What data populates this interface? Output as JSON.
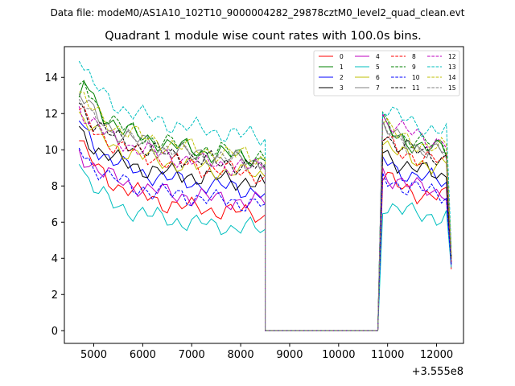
{
  "chart_data": {
    "type": "line",
    "suptitle": "Data file: modeM0/AS1A10_102T10_9000004282_29878cztM0_level2_quad_clean.evt",
    "title": "Quadrant 1 module wise count rates with 100.0s bins.",
    "xlabel": "",
    "ylabel": "",
    "x_offset_label": "+3.555e8",
    "xlim": [
      4400,
      12550
    ],
    "ylim": [
      -0.7,
      15.7
    ],
    "xticks": [
      5000,
      6000,
      7000,
      8000,
      9000,
      10000,
      11000,
      12000
    ],
    "yticks": [
      0,
      2,
      4,
      6,
      8,
      10,
      12,
      14
    ],
    "legend_position": "top-right",
    "legend_columns": 4,
    "bin_width": 100,
    "gap": [
      8500,
      10800
    ],
    "segment1_x": [
      4700,
      8500
    ],
    "segment2_x": [
      10900,
      12300
    ],
    "series": [
      {
        "name": "0",
        "color": "#ff0000",
        "dash": "solid",
        "seg1": [
          10.5,
          10.0,
          9.6,
          9.2,
          8.9,
          8.7,
          8.4,
          8.2,
          8.0,
          7.9,
          7.8,
          7.7,
          7.6,
          7.5,
          7.4,
          7.3,
          7.2,
          7.1,
          7.0,
          7.0,
          6.9,
          6.9,
          6.8,
          6.8,
          6.8,
          6.8,
          6.7,
          6.7,
          6.7,
          6.6,
          6.6,
          6.6,
          6.6,
          6.5,
          6.5,
          6.5,
          6.5,
          6.4,
          6.4
        ],
        "seg2": [
          8.6,
          8.4,
          8.2,
          8.0,
          7.9,
          7.8,
          7.7,
          7.6,
          7.6,
          7.5,
          7.5,
          7.4,
          7.4,
          7.4,
          3.4
        ]
      },
      {
        "name": "1",
        "color": "#008000",
        "dash": "solid",
        "seg1": [
          12.9,
          13.8,
          13.3,
          12.7,
          12.3,
          12.0,
          11.7,
          11.5,
          11.3,
          11.1,
          11.0,
          10.9,
          10.8,
          10.7,
          10.6,
          10.5,
          10.5,
          10.4,
          10.3,
          10.3,
          10.2,
          10.1,
          10.1,
          10.0,
          10.0,
          9.9,
          9.9,
          9.8,
          9.8,
          9.8,
          9.7,
          9.7,
          9.7,
          9.6,
          9.6,
          9.6,
          9.5,
          9.5,
          9.4
        ],
        "seg2": [
          11.4,
          11.1,
          10.9,
          10.7,
          10.6,
          10.5,
          10.4,
          10.3,
          10.2,
          10.1,
          10.1,
          10.0,
          10.0,
          9.9,
          4.0
        ]
      },
      {
        "name": "2",
        "color": "#0000ff",
        "dash": "solid",
        "seg1": [
          11.6,
          11.1,
          10.7,
          10.3,
          10.0,
          9.8,
          9.6,
          9.4,
          9.3,
          9.1,
          9.0,
          8.9,
          8.8,
          8.7,
          8.7,
          8.6,
          8.5,
          8.5,
          8.4,
          8.4,
          8.3,
          8.3,
          8.2,
          8.2,
          8.1,
          8.1,
          8.1,
          8.0,
          8.0,
          8.0,
          7.9,
          7.9,
          7.9,
          7.8,
          7.8,
          7.8,
          7.7,
          7.7,
          7.6
        ],
        "seg2": [
          9.5,
          9.3,
          9.1,
          8.9,
          8.8,
          8.7,
          8.6,
          8.5,
          8.5,
          8.4,
          8.4,
          8.3,
          8.3,
          8.2,
          3.8
        ]
      },
      {
        "name": "3",
        "color": "#000000",
        "dash": "solid",
        "seg1": [
          11.3,
          10.8,
          10.5,
          10.2,
          10.0,
          9.8,
          9.7,
          9.5,
          9.4,
          9.3,
          9.2,
          9.1,
          9.1,
          9.0,
          8.9,
          8.9,
          8.8,
          8.8,
          8.7,
          8.7,
          8.7,
          8.6,
          8.6,
          8.6,
          8.5,
          8.5,
          8.5,
          8.4,
          8.4,
          8.4,
          8.4,
          8.3,
          8.3,
          8.3,
          8.3,
          8.2,
          8.2,
          8.2,
          8.1
        ],
        "seg2": [
          9.9,
          9.7,
          9.5,
          9.3,
          9.2,
          9.1,
          9.0,
          8.9,
          8.8,
          8.8,
          8.7,
          8.7,
          8.6,
          8.6,
          3.7
        ]
      },
      {
        "name": "4",
        "color": "#bf00bf",
        "dash": "solid",
        "seg1": [
          10.0,
          9.6,
          9.3,
          9.1,
          8.9,
          8.7,
          8.6,
          8.4,
          8.3,
          8.2,
          8.1,
          8.0,
          8.0,
          7.9,
          7.8,
          7.8,
          7.7,
          7.7,
          7.6,
          7.6,
          7.5,
          7.5,
          7.5,
          7.4,
          7.4,
          7.4,
          7.3,
          7.3,
          7.3,
          7.3,
          7.2,
          7.2,
          7.2,
          7.2,
          7.1,
          7.1,
          7.1,
          7.1,
          7.0
        ],
        "seg2": [
          8.8,
          8.6,
          8.4,
          8.3,
          8.2,
          8.1,
          8.0,
          7.9,
          7.9,
          7.8,
          7.8,
          7.7,
          7.7,
          7.7,
          3.6
        ]
      },
      {
        "name": "5",
        "color": "#00bfbf",
        "dash": "solid",
        "seg1": [
          9.2,
          8.8,
          8.3,
          7.9,
          7.6,
          7.4,
          7.2,
          7.0,
          6.9,
          6.8,
          6.7,
          6.6,
          6.5,
          6.5,
          6.4,
          6.3,
          6.3,
          6.2,
          6.2,
          6.1,
          6.1,
          6.0,
          6.0,
          6.0,
          5.9,
          5.9,
          5.9,
          5.8,
          5.8,
          5.8,
          5.8,
          5.7,
          5.7,
          5.7,
          5.7,
          5.7,
          5.6,
          5.6,
          5.6
        ],
        "seg2": [
          7.0,
          6.9,
          6.8,
          6.7,
          6.6,
          6.6,
          6.5,
          6.5,
          6.4,
          6.4,
          6.4,
          6.3,
          6.3,
          6.3,
          3.5
        ]
      },
      {
        "name": "6",
        "color": "#bfbf00",
        "dash": "solid",
        "seg1": [
          12.1,
          11.7,
          11.3,
          11.0,
          10.8,
          10.6,
          10.4,
          10.2,
          10.1,
          10.0,
          9.9,
          9.8,
          9.7,
          9.6,
          9.6,
          9.5,
          9.4,
          9.4,
          9.3,
          9.3,
          9.2,
          9.2,
          9.1,
          9.1,
          9.0,
          9.0,
          9.0,
          8.9,
          8.9,
          8.9,
          8.8,
          8.8,
          8.8,
          8.7,
          8.7,
          8.7,
          8.6,
          8.6,
          8.5
        ],
        "seg2": [
          10.4,
          10.2,
          10.0,
          9.8,
          9.7,
          9.6,
          9.5,
          9.4,
          9.3,
          9.3,
          9.2,
          9.2,
          9.1,
          9.1,
          3.9
        ]
      },
      {
        "name": "7",
        "color": "#808080",
        "dash": "solid",
        "seg1": [
          13.1,
          12.7,
          12.3,
          12.0,
          11.7,
          11.5,
          11.3,
          11.1,
          10.9,
          10.8,
          10.7,
          10.6,
          10.5,
          10.4,
          10.3,
          10.2,
          10.2,
          10.1,
          10.0,
          10.0,
          9.9,
          9.9,
          9.8,
          9.8,
          9.7,
          9.7,
          9.6,
          9.6,
          9.6,
          9.5,
          9.5,
          9.5,
          9.4,
          9.4,
          9.4,
          9.3,
          9.3,
          9.3,
          9.2
        ],
        "seg2": [
          11.3,
          11.0,
          10.8,
          10.6,
          10.5,
          10.4,
          10.3,
          10.2,
          10.1,
          10.0,
          10.0,
          9.9,
          9.9,
          9.8,
          4.1
        ]
      },
      {
        "name": "8",
        "color": "#ff0000",
        "dash": "dashed",
        "seg1": [
          12.2,
          11.8,
          11.4,
          11.1,
          10.9,
          10.7,
          10.5,
          10.3,
          10.2,
          10.1,
          10.0,
          9.9,
          9.8,
          9.7,
          9.6,
          9.6,
          9.5,
          9.4,
          9.4,
          9.3,
          9.3,
          9.2,
          9.2,
          9.1,
          9.1,
          9.0,
          9.0,
          9.0,
          8.9,
          8.9,
          8.9,
          8.8,
          8.8,
          8.8,
          8.7,
          8.7,
          8.7,
          8.6,
          8.6
        ],
        "seg2": [
          10.6,
          10.4,
          10.2,
          10.0,
          9.9,
          9.8,
          9.7,
          9.6,
          9.5,
          9.5,
          9.4,
          9.4,
          9.3,
          9.3,
          3.8
        ]
      },
      {
        "name": "9",
        "color": "#008000",
        "dash": "dashed",
        "seg1": [
          13.6,
          13.8,
          13.2,
          12.7,
          12.4,
          12.1,
          11.8,
          11.6,
          11.4,
          11.2,
          11.1,
          11.0,
          10.9,
          10.8,
          10.7,
          10.6,
          10.5,
          10.5,
          10.4,
          10.3,
          10.3,
          10.2,
          10.2,
          10.1,
          10.1,
          10.0,
          10.0,
          9.9,
          9.9,
          9.9,
          9.8,
          9.8,
          9.8,
          9.7,
          9.7,
          9.7,
          9.6,
          9.6,
          9.5
        ],
        "seg2": [
          11.6,
          11.3,
          11.1,
          10.9,
          10.8,
          10.7,
          10.6,
          10.5,
          10.4,
          10.3,
          10.3,
          10.2,
          10.2,
          10.1,
          4.2
        ]
      },
      {
        "name": "10",
        "color": "#0000ff",
        "dash": "dashed",
        "seg1": [
          10.1,
          9.7,
          9.4,
          9.1,
          8.9,
          8.7,
          8.5,
          8.4,
          8.3,
          8.2,
          8.1,
          8.0,
          7.9,
          7.9,
          7.8,
          7.7,
          7.7,
          7.6,
          7.6,
          7.5,
          7.5,
          7.5,
          7.4,
          7.4,
          7.4,
          7.3,
          7.3,
          7.3,
          7.2,
          7.2,
          7.2,
          7.2,
          7.1,
          7.1,
          7.1,
          7.1,
          7.0,
          7.0,
          7.0
        ],
        "seg2": [
          8.6,
          8.4,
          8.3,
          8.1,
          8.0,
          7.9,
          7.9,
          7.8,
          7.8,
          7.7,
          7.7,
          7.6,
          7.6,
          7.6,
          3.6
        ]
      },
      {
        "name": "11",
        "color": "#000000",
        "dash": "dashed",
        "seg1": [
          12.6,
          12.2,
          11.8,
          11.5,
          11.3,
          11.1,
          10.9,
          10.7,
          10.6,
          10.5,
          10.4,
          10.3,
          10.2,
          10.1,
          10.0,
          10.0,
          9.9,
          9.8,
          9.8,
          9.7,
          9.7,
          9.6,
          9.6,
          9.5,
          9.5,
          9.4,
          9.4,
          9.4,
          9.3,
          9.3,
          9.3,
          9.2,
          9.2,
          9.2,
          9.1,
          9.1,
          9.1,
          9.0,
          9.0
        ],
        "seg2": [
          10.9,
          10.7,
          10.5,
          10.3,
          10.2,
          10.1,
          10.0,
          9.9,
          9.8,
          9.8,
          9.7,
          9.7,
          9.6,
          9.6,
          4.0
        ]
      },
      {
        "name": "12",
        "color": "#bf00bf",
        "dash": "dashed",
        "seg1": [
          12.4,
          12.0,
          11.7,
          11.4,
          11.2,
          11.0,
          10.8,
          10.6,
          10.5,
          10.4,
          10.3,
          10.2,
          10.1,
          10.0,
          9.9,
          9.9,
          9.8,
          9.7,
          9.7,
          9.6,
          9.6,
          9.5,
          9.5,
          9.4,
          9.4,
          9.3,
          9.3,
          9.3,
          9.2,
          9.2,
          9.2,
          9.1,
          9.1,
          9.1,
          9.0,
          9.0,
          9.0,
          8.9,
          8.9
        ],
        "seg2": [
          11.9,
          11.6,
          11.4,
          11.2,
          11.1,
          11.0,
          10.9,
          10.8,
          10.7,
          10.6,
          10.6,
          10.5,
          10.5,
          10.4,
          4.3
        ]
      },
      {
        "name": "13",
        "color": "#00bfbf",
        "dash": "dashed",
        "seg1": [
          14.9,
          14.4,
          14.0,
          13.6,
          13.3,
          13.0,
          12.8,
          12.6,
          12.4,
          12.3,
          12.2,
          12.1,
          12.0,
          11.9,
          11.8,
          11.7,
          11.6,
          11.6,
          11.5,
          11.4,
          11.4,
          11.3,
          11.3,
          11.2,
          11.2,
          11.1,
          11.1,
          11.0,
          11.0,
          11.0,
          10.9,
          10.9,
          10.9,
          10.8,
          10.8,
          10.8,
          10.7,
          10.7,
          10.6
        ],
        "seg2": [
          12.4,
          12.2,
          12.0,
          11.8,
          11.7,
          11.6,
          11.5,
          11.4,
          11.3,
          11.2,
          11.2,
          11.1,
          11.1,
          11.0,
          4.6
        ]
      },
      {
        "name": "14",
        "color": "#bfbf00",
        "dash": "dashed",
        "seg1": [
          13.2,
          12.8,
          12.4,
          12.1,
          11.9,
          11.7,
          11.5,
          11.3,
          11.2,
          11.1,
          11.0,
          10.9,
          10.8,
          10.7,
          10.6,
          10.5,
          10.5,
          10.4,
          10.3,
          10.3,
          10.2,
          10.2,
          10.1,
          10.1,
          10.0,
          10.0,
          9.9,
          9.9,
          9.9,
          9.8,
          9.8,
          9.8,
          9.7,
          9.7,
          9.7,
          9.6,
          9.6,
          9.6,
          9.5
        ],
        "seg2": [
          11.5,
          11.2,
          11.0,
          10.8,
          10.7,
          10.6,
          10.5,
          10.4,
          10.3,
          10.2,
          10.2,
          10.1,
          10.1,
          10.0,
          4.2
        ]
      },
      {
        "name": "15",
        "color": "#808080",
        "dash": "dashed",
        "seg1": [
          12.8,
          12.4,
          12.0,
          11.7,
          11.5,
          11.3,
          11.1,
          10.9,
          10.8,
          10.7,
          10.6,
          10.5,
          10.4,
          10.3,
          10.2,
          10.2,
          10.1,
          10.0,
          10.0,
          9.9,
          9.9,
          9.8,
          9.8,
          9.7,
          9.7,
          9.6,
          9.6,
          9.6,
          9.5,
          9.5,
          9.5,
          9.4,
          9.4,
          9.4,
          9.3,
          9.3,
          9.3,
          9.2,
          9.2
        ],
        "seg2": [
          11.1,
          10.9,
          10.7,
          10.5,
          10.4,
          10.3,
          10.2,
          10.1,
          10.0,
          10.0,
          9.9,
          9.9,
          9.8,
          9.8,
          4.1
        ]
      }
    ]
  }
}
